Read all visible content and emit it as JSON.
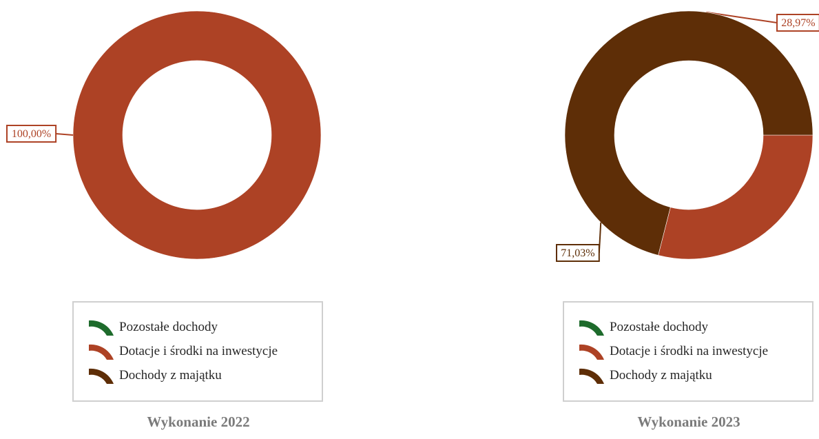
{
  "legend": {
    "items": [
      {
        "label": "Pozostałe dochody",
        "color": "#1e6b2c"
      },
      {
        "label": "Dotacje i środki na inwestycje",
        "color": "#ad4225"
      },
      {
        "label": "Dochody z majątku",
        "color": "#5e2e07"
      }
    ]
  },
  "chart_data": [
    {
      "type": "pie",
      "variant": "donut",
      "title": "Wykonanie 2022",
      "categories": [
        "Pozostałe dochody",
        "Dotacje i środki na inwestycje",
        "Dochody z majątku"
      ],
      "values": [
        0,
        100.0,
        0
      ],
      "data_labels": [
        "",
        "100,00%",
        ""
      ],
      "colors": [
        "#1e6b2c",
        "#ad4225",
        "#5e2e07"
      ],
      "legend_position": "bottom"
    },
    {
      "type": "pie",
      "variant": "donut",
      "title": "Wykonanie 2023",
      "categories": [
        "Pozostałe dochody",
        "Dotacje i środki na inwestycje",
        "Dochody z majątku"
      ],
      "values": [
        0,
        28.97,
        71.03
      ],
      "data_labels": [
        "",
        "28,97%",
        "71,03%"
      ],
      "colors": [
        "#1e6b2c",
        "#ad4225",
        "#5e2e07"
      ],
      "legend_position": "bottom"
    }
  ]
}
